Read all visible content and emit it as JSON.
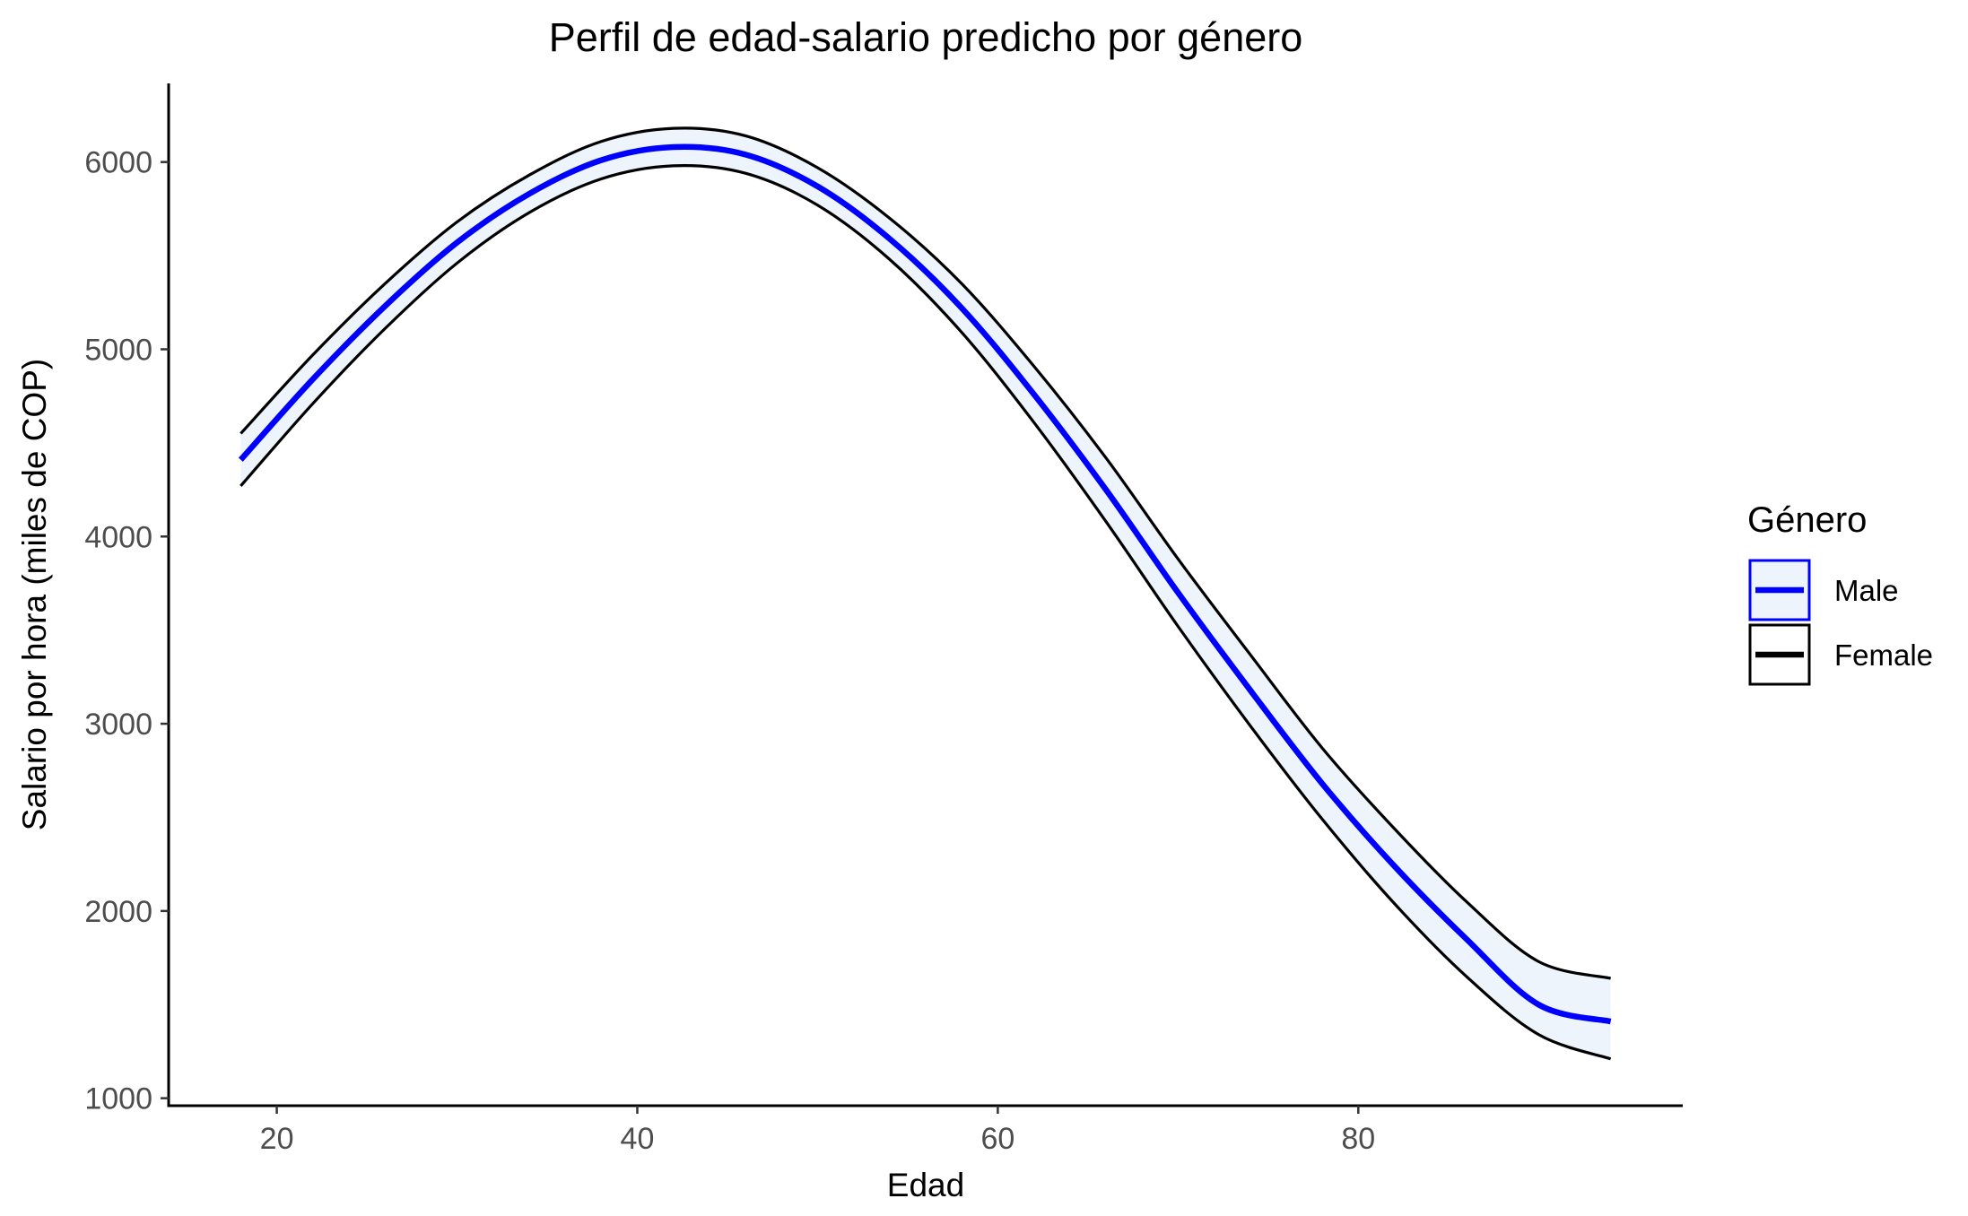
{
  "chart_data": {
    "type": "line",
    "title": "Perfil de edad-salario predicho por género",
    "xlabel": "Edad",
    "ylabel": "Salario por hora (miles de COP)",
    "xlim": [
      14,
      98
    ],
    "ylim": [
      960,
      6420
    ],
    "x_ticks": [
      20,
      40,
      60,
      80
    ],
    "y_ticks": [
      1000,
      2000,
      3000,
      4000,
      5000,
      6000
    ],
    "grid": false,
    "legend": {
      "title": "Género",
      "position": "right",
      "entries": [
        {
          "label": "Male",
          "color": "#0000ff",
          "box_fill": "#eef4fb",
          "box_border": "#0000ff"
        },
        {
          "label": "Female",
          "color": "#000000",
          "box_fill": "#ffffff",
          "box_border": "#000000"
        }
      ]
    },
    "band_fill": "#eef4fb",
    "series": [
      {
        "name": "Male",
        "color": "#0000ff",
        "x": [
          18,
          22,
          26,
          30,
          34,
          38,
          42,
          46,
          50,
          54,
          58,
          62,
          66,
          70,
          74,
          78,
          82,
          86,
          90,
          94
        ],
        "y": [
          4410,
          4840,
          5230,
          5570,
          5830,
          6010,
          6080,
          6040,
          5870,
          5590,
          5220,
          4760,
          4250,
          3700,
          3180,
          2680,
          2240,
          1850,
          1500,
          1410
        ],
        "lower": [
          4270,
          4710,
          5110,
          5460,
          5730,
          5910,
          5980,
          5940,
          5770,
          5480,
          5090,
          4610,
          4080,
          3520,
          2990,
          2490,
          2040,
          1650,
          1340,
          1210
        ],
        "upper": [
          4550,
          4970,
          5350,
          5680,
          5930,
          6110,
          6180,
          6140,
          5970,
          5700,
          5350,
          4910,
          4420,
          3880,
          3370,
          2870,
          2440,
          2050,
          1730,
          1640
        ]
      }
    ]
  }
}
